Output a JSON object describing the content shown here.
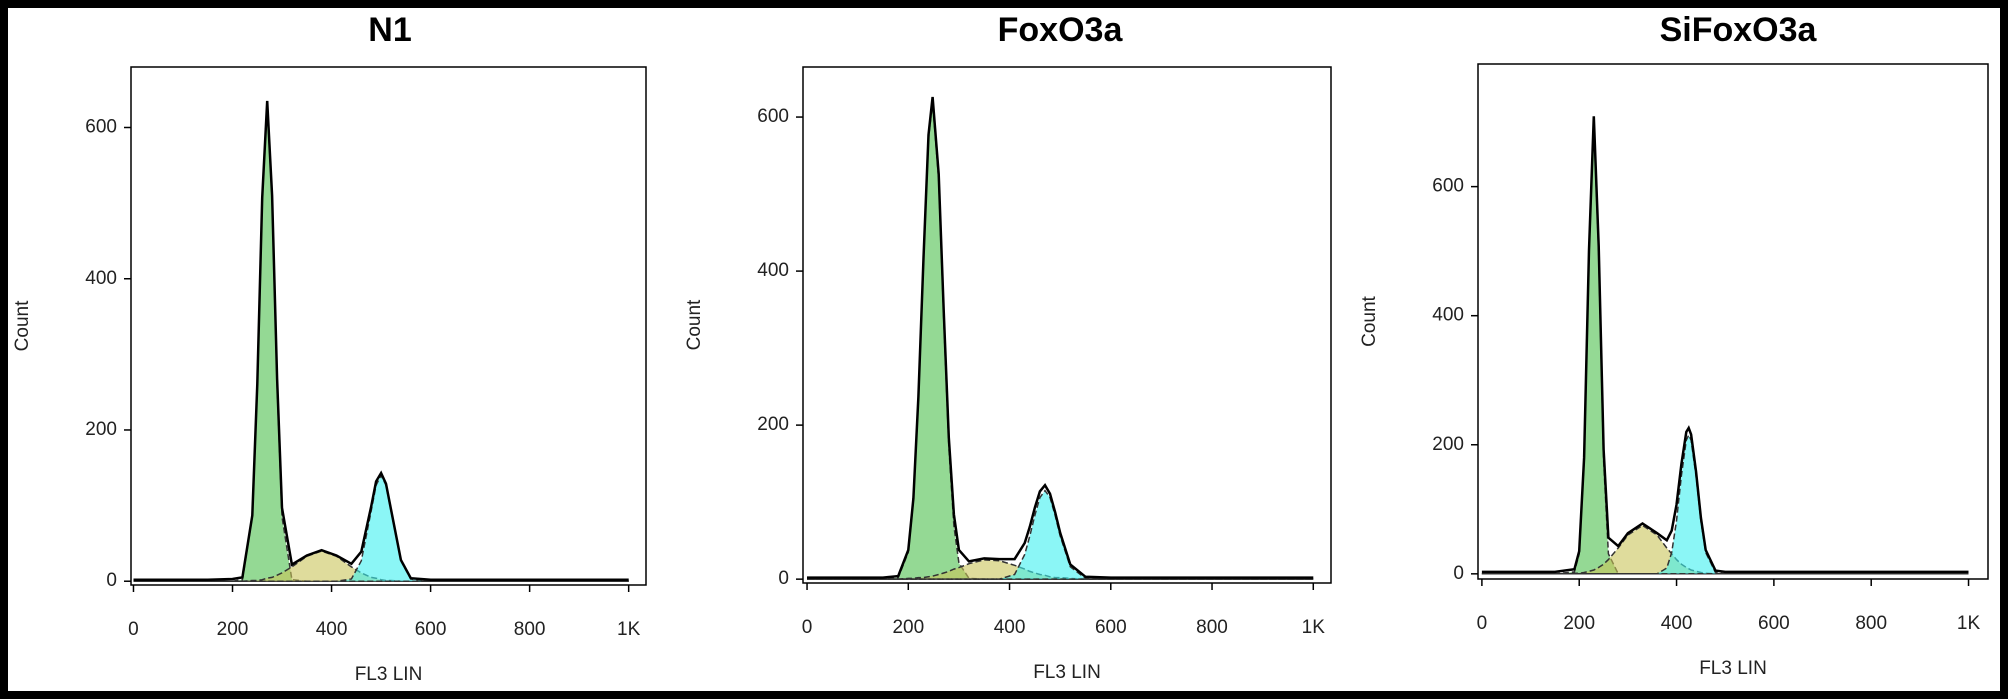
{
  "chart_data": [
    {
      "type": "area",
      "title": "N1",
      "xlabel": "FL3 LIN",
      "ylabel": "Count",
      "xlim": [
        -5,
        1035
      ],
      "ylim": [
        -5,
        680
      ],
      "xticks": [
        0,
        200,
        400,
        600,
        800,
        {
          "value": 1000,
          "label": "1K"
        }
      ],
      "yticks": [
        0,
        200,
        400,
        600
      ],
      "x": [
        0,
        150,
        200,
        220,
        240,
        250,
        260,
        270,
        280,
        290,
        300,
        320,
        350,
        380,
        410,
        440,
        460,
        480,
        490,
        500,
        510,
        520,
        540,
        560,
        600,
        800,
        1000
      ],
      "series": [
        {
          "color": "#4cc04c",
          "fill": true,
          "values": [
            0,
            0,
            0,
            2,
            85,
            259,
            504,
            630,
            504,
            259,
            85,
            2,
            0,
            0,
            0,
            0,
            0,
            0,
            0,
            0,
            0,
            0,
            0,
            0,
            0,
            0,
            0
          ]
        },
        {
          "color": "#c9c55a",
          "fill": true,
          "values": [
            0,
            0,
            0,
            0,
            1,
            1,
            2,
            4,
            5,
            8,
            11,
            19,
            33,
            40,
            33,
            19,
            11,
            5,
            4,
            2,
            1,
            1,
            0,
            0,
            0,
            0,
            0
          ]
        },
        {
          "color": "#3ef0f0",
          "fill": true,
          "values": [
            0,
            0,
            0,
            0,
            0,
            0,
            0,
            0,
            0,
            0,
            0,
            0,
            0,
            0,
            0,
            3,
            27,
            93,
            127,
            140,
            127,
            93,
            27,
            3,
            0,
            0,
            0
          ]
        },
        {
          "color": "#000000",
          "fill": false,
          "values": [
            2,
            2,
            3,
            5,
            87,
            261,
            507,
            635,
            510,
            268,
            97,
            22,
            34,
            41,
            34,
            23,
            39,
            99,
            132,
            143,
            129,
            95,
            28,
            4,
            2,
            2,
            2
          ]
        }
      ]
    },
    {
      "type": "area",
      "title": "FoxO3a",
      "xlabel": "FL3 LIN",
      "ylabel": "Count",
      "xlim": [
        -8,
        1035
      ],
      "ylim": [
        -5,
        665
      ],
      "xticks": [
        0,
        200,
        400,
        600,
        800,
        {
          "value": 1000,
          "label": "1K"
        }
      ],
      "yticks": [
        0,
        200,
        400,
        600
      ],
      "x": [
        0,
        150,
        180,
        200,
        210,
        220,
        230,
        240,
        248,
        260,
        270,
        280,
        290,
        300,
        320,
        350,
        380,
        410,
        430,
        440,
        450,
        460,
        470,
        480,
        490,
        500,
        520,
        550,
        600,
        800,
        1000
      ],
      "series": [
        {
          "color": "#4cc04c",
          "fill": true,
          "values": [
            0,
            0,
            2,
            35,
            102,
            233,
            413,
            572,
            620,
            518,
            339,
            172,
            69,
            21,
            1,
            0,
            0,
            0,
            0,
            0,
            0,
            0,
            0,
            0,
            0,
            0,
            0,
            0,
            0,
            0,
            0
          ]
        },
        {
          "color": "#c9c55a",
          "fill": true,
          "values": [
            0,
            0,
            0,
            1,
            1,
            2,
            2,
            3,
            4,
            6,
            8,
            10,
            13,
            15,
            20,
            25,
            24,
            18,
            13,
            10,
            8,
            6,
            5,
            3,
            2,
            2,
            1,
            0,
            0,
            0,
            0
          ]
        },
        {
          "color": "#3ef0f0",
          "fill": true,
          "values": [
            0,
            0,
            0,
            0,
            0,
            0,
            0,
            0,
            0,
            0,
            0,
            0,
            0,
            0,
            0,
            0,
            0,
            6,
            32,
            56,
            83,
            106,
            115,
            106,
            83,
            56,
            16,
            1,
            0,
            0,
            0
          ]
        },
        {
          "color": "#000000",
          "fill": false,
          "values": [
            2,
            2,
            4,
            38,
            105,
            237,
            417,
            577,
            626,
            526,
            349,
            184,
            84,
            38,
            23,
            27,
            26,
            26,
            47,
            68,
            93,
            114,
            122,
            111,
            87,
            60,
            19,
            3,
            2,
            2,
            2
          ]
        }
      ]
    },
    {
      "type": "area",
      "title": "SiFoxO3a",
      "xlabel": "FL3 LIN",
      "ylabel": "Count",
      "xlim": [
        -8,
        1040
      ],
      "ylim": [
        -8,
        790
      ],
      "xticks": [
        0,
        200,
        400,
        600,
        800,
        {
          "value": 1000,
          "label": "1K"
        }
      ],
      "yticks": [
        0,
        200,
        400,
        600
      ],
      "x": [
        0,
        150,
        190,
        200,
        210,
        220,
        230,
        240,
        250,
        260,
        280,
        300,
        330,
        360,
        380,
        390,
        400,
        410,
        420,
        425,
        430,
        440,
        450,
        460,
        480,
        500,
        600,
        800,
        1000
      ],
      "series": [
        {
          "color": "#4cc04c",
          "fill": true,
          "values": [
            0,
            0,
            3,
            31,
            175,
            495,
            700,
            495,
            175,
            31,
            0,
            0,
            0,
            0,
            0,
            0,
            0,
            0,
            0,
            0,
            0,
            0,
            0,
            0,
            0,
            0,
            0,
            0,
            0
          ]
        },
        {
          "color": "#c9c55a",
          "fill": true,
          "values": [
            0,
            0,
            1,
            1,
            2,
            4,
            6,
            10,
            15,
            22,
            40,
            60,
            75,
            60,
            40,
            31,
            22,
            15,
            10,
            8,
            6,
            4,
            2,
            1,
            0,
            0,
            0,
            0,
            0
          ]
        },
        {
          "color": "#3ef0f0",
          "fill": true,
          "values": [
            0,
            0,
            0,
            0,
            0,
            0,
            0,
            0,
            0,
            0,
            0,
            0,
            0,
            0,
            9,
            33,
            82,
            152,
            207,
            215,
            207,
            152,
            82,
            33,
            2,
            0,
            0,
            0,
            0
          ]
        },
        {
          "color": "#000000",
          "fill": false,
          "values": [
            3,
            3,
            7,
            35,
            180,
            502,
            709,
            508,
            193,
            56,
            43,
            63,
            78,
            63,
            52,
            67,
            107,
            170,
            220,
            226,
            216,
            159,
            87,
            37,
            5,
            3,
            3,
            3,
            3
          ]
        }
      ]
    }
  ]
}
